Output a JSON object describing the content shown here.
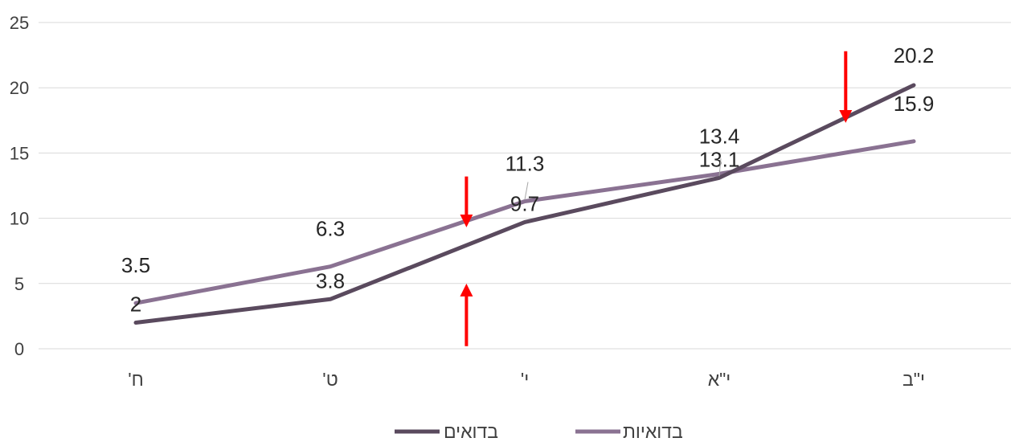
{
  "chart_data": {
    "type": "line",
    "categories": [
      "ח'",
      "ט'",
      "י'",
      "י\"א",
      "י\"ב"
    ],
    "series": [
      {
        "name": "בדואים",
        "values": [
          2,
          3.8,
          9.7,
          13.1,
          20.2
        ],
        "color": "#5a4a5e"
      },
      {
        "name": "בדואיות",
        "values": [
          3.5,
          6.3,
          11.3,
          13.4,
          15.9
        ],
        "color": "#8a7292"
      }
    ],
    "ylim": [
      0,
      25
    ],
    "yticks": [
      0,
      5,
      10,
      15,
      20,
      25
    ],
    "grid": true,
    "legend_position": "bottom",
    "annotations": [
      {
        "type": "arrow",
        "direction": "down",
        "color": "#ff0000",
        "at_x": 1.7,
        "from_y": 13.2,
        "to_y": 9.8
      },
      {
        "type": "arrow",
        "direction": "up",
        "color": "#ff0000",
        "at_x": 1.7,
        "from_y": 0.2,
        "to_y": 4.5
      },
      {
        "type": "arrow",
        "direction": "down",
        "color": "#ff0000",
        "at_x": 3.65,
        "from_y": 22.8,
        "to_y": 17.8
      }
    ]
  },
  "colors": {
    "grid": "#d9d9d9",
    "text": "#404040",
    "label": "#262626"
  }
}
